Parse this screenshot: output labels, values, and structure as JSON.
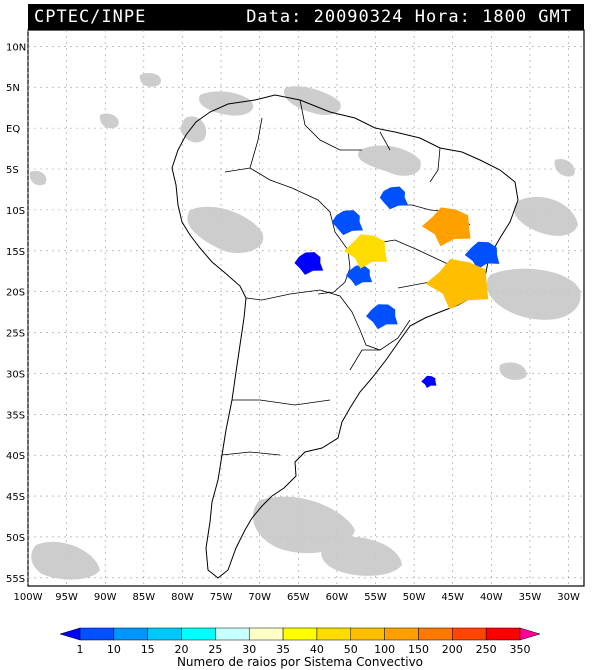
{
  "header": {
    "source": "CPTEC/INPE",
    "datetime": "Data: 20090324 Hora: 1800 GMT"
  },
  "axes": {
    "lat_labels": [
      "10N",
      "5N",
      "EQ",
      "5S",
      "10S",
      "15S",
      "20S",
      "25S",
      "30S",
      "35S",
      "40S",
      "45S",
      "50S",
      "55S"
    ],
    "lon_labels": [
      "100W",
      "95W",
      "90W",
      "85W",
      "80W",
      "75W",
      "70W",
      "65W",
      "60W",
      "55W",
      "50W",
      "45W",
      "40W",
      "35W",
      "30W"
    ]
  },
  "legend": {
    "values": [
      "1",
      "10",
      "15",
      "20",
      "25",
      "30",
      "35",
      "40",
      "50",
      "100",
      "150",
      "200",
      "250",
      "350"
    ],
    "colors": [
      "#0000ff",
      "#0050ff",
      "#0096ff",
      "#00c8ff",
      "#00ffff",
      "#c8ffff",
      "#ffffc8",
      "#ffff00",
      "#ffdc00",
      "#ffbe00",
      "#ffa000",
      "#ff7800",
      "#ff4600",
      "#ff0000",
      "#ff0096"
    ],
    "caption": "Numero de raios por Sistema Convectivo"
  },
  "clusters": [
    {
      "name": "blue-cluster-north-mato-grosso",
      "lat": -8.5,
      "lon": -52.5,
      "color": "#0050ff"
    },
    {
      "name": "blue-cluster-west-mato-grosso",
      "lat": -11.5,
      "lon": -58.5,
      "color": "#0050ff"
    },
    {
      "name": "blue-cluster-rondonia",
      "lat": -16.5,
      "lon": -63.5,
      "color": "#0000ff"
    },
    {
      "name": "blue-cluster-mato-grosso-sul",
      "lat": -18,
      "lon": -57,
      "color": "#0050ff"
    },
    {
      "name": "blue-cluster-parana",
      "lat": -23,
      "lon": -54,
      "color": "#0050ff"
    },
    {
      "name": "blue-cluster-bahia",
      "lat": -15.5,
      "lon": -41,
      "color": "#0050ff"
    },
    {
      "name": "blue-cluster-atlantic",
      "lat": -31,
      "lon": -48,
      "color": "#0000ff"
    },
    {
      "name": "yellow-cluster-mato-grosso",
      "lat": -15,
      "lon": -56,
      "color": "#ffdc00"
    },
    {
      "name": "orange-cluster-goias",
      "lat": -12,
      "lon": -45.5,
      "color": "#ffa000"
    },
    {
      "name": "orange-cluster-minas",
      "lat": -19,
      "lon": -44,
      "color": "#ffbe00"
    }
  ]
}
